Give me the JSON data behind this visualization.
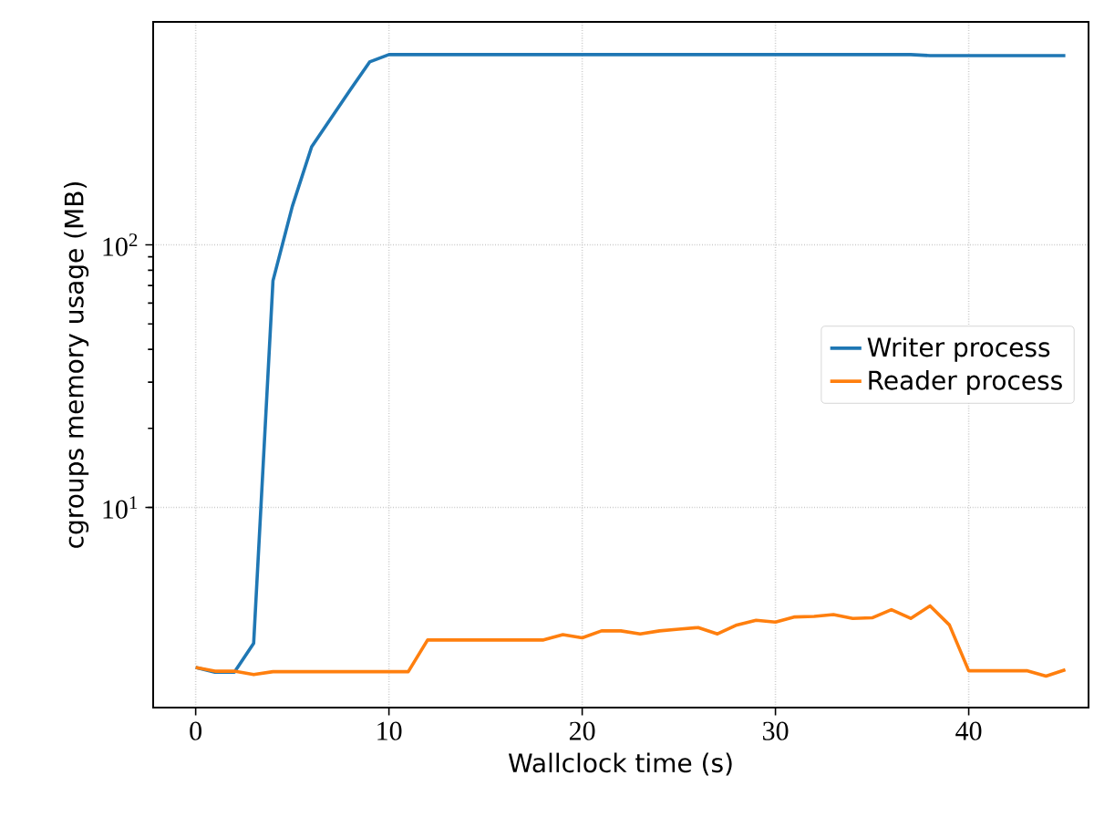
{
  "chart_data": {
    "type": "line",
    "xlabel": "Wallclock time (s)",
    "ylabel": "cgroups memory usage (MB)",
    "log": "y",
    "x": [
      0,
      1,
      2,
      3,
      4,
      5,
      6,
      7,
      8,
      9,
      10,
      11,
      12,
      13,
      14,
      15,
      16,
      17,
      18,
      19,
      20,
      21,
      22,
      23,
      24,
      25,
      26,
      27,
      28,
      29,
      30,
      31,
      32,
      33,
      34,
      35,
      36,
      37,
      38,
      39,
      40,
      41,
      42,
      43,
      44,
      45
    ],
    "series": [
      {
        "name": "Writer process",
        "color": "#1f77b4",
        "values": [
          2.46,
          2.36,
          2.36,
          3.04,
          73,
          140,
          236,
          303,
          389,
          497,
          530,
          530,
          530,
          530,
          530,
          530,
          530,
          530,
          530,
          530,
          530,
          530,
          530,
          530,
          530,
          530,
          530,
          530,
          530,
          530,
          530,
          530,
          530,
          530,
          530,
          530,
          530,
          530,
          525,
          525,
          525,
          525,
          525,
          525,
          525,
          525
        ]
      },
      {
        "name": "Reader process",
        "color": "#ff7f0e",
        "values": [
          2.46,
          2.38,
          2.38,
          2.31,
          2.37,
          2.37,
          2.37,
          2.37,
          2.37,
          2.37,
          2.37,
          2.37,
          3.13,
          3.13,
          3.13,
          3.13,
          3.13,
          3.13,
          3.13,
          3.28,
          3.19,
          3.39,
          3.39,
          3.3,
          3.39,
          3.44,
          3.49,
          3.3,
          3.57,
          3.72,
          3.66,
          3.83,
          3.85,
          3.91,
          3.78,
          3.8,
          4.08,
          3.78,
          4.22,
          3.57,
          2.39,
          2.39,
          2.39,
          2.39,
          2.28,
          2.41
        ]
      }
    ],
    "xlim": [
      -2.2,
      46.2
    ],
    "ylim": [
      1.73,
      706
    ],
    "xticks": [
      0,
      10,
      20,
      30,
      40
    ],
    "yticks": [
      {
        "value": 10,
        "label": "10$^{1}$"
      },
      {
        "value": 100,
        "label": "10$^{2}$"
      }
    ],
    "grid": true,
    "legend": "right",
    "line_style": "solid",
    "marker": "none"
  }
}
